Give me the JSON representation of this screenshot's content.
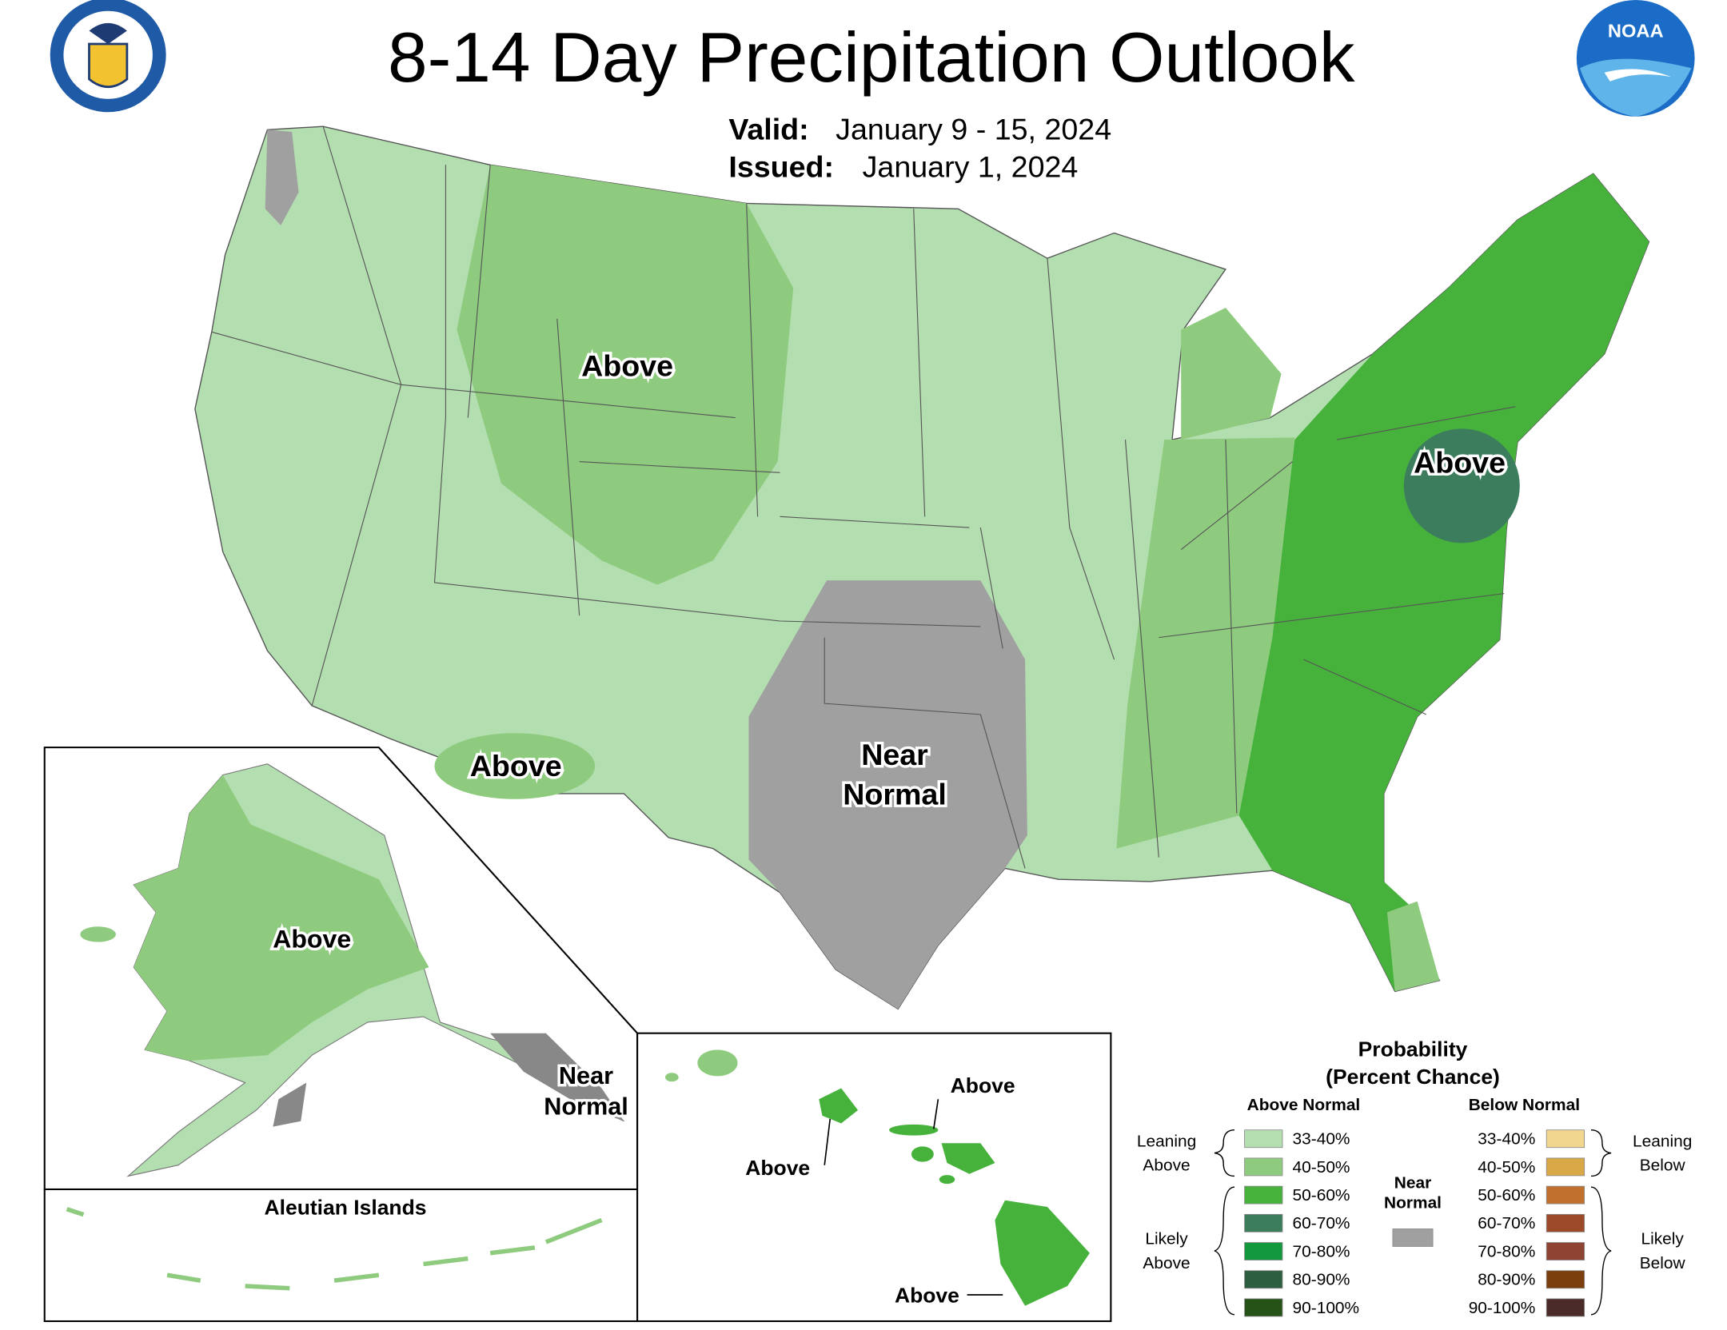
{
  "header": {
    "title": "8-14 Day Precipitation Outlook",
    "valid_label": "Valid:",
    "valid": "January 9 - 15, 2024",
    "issued_label": "Issued:",
    "issued": "January 1, 2024",
    "noaa_logo": "NOAA"
  },
  "map_labels": {
    "conus_rockies": "Above",
    "conus_mid_atlantic": "Above",
    "conus_arizona": "Above",
    "conus_near_normal": [
      "Near",
      "Normal"
    ],
    "alaska_above": "Above",
    "alaska_near_normal": [
      "Near",
      "Normal"
    ],
    "hawaii_kauai_maui": "Above",
    "hawaii_oahu": "Above",
    "hawaii_big_island": "Above"
  },
  "inset_labels": {
    "aleutian": "Aleutian Islands"
  },
  "legend": {
    "title": "Probability",
    "subtitle": "(Percent Chance)",
    "above_heading": "Above Normal",
    "below_heading": "Below Normal",
    "above_items": [
      {
        "label": "33-40%",
        "color": "#b3deb0"
      },
      {
        "label": "40-50%",
        "color": "#8fcb7f"
      },
      {
        "label": "50-60%",
        "color": "#46b23c"
      },
      {
        "label": "60-70%",
        "color": "#3b7d5d"
      },
      {
        "label": "70-80%",
        "color": "#14983e"
      },
      {
        "label": "80-90%",
        "color": "#2d5e40"
      },
      {
        "label": "90-100%",
        "color": "#245217"
      }
    ],
    "below_items": [
      {
        "label": "33-40%",
        "color": "#f0d68e"
      },
      {
        "label": "40-50%",
        "color": "#d9a947"
      },
      {
        "label": "50-60%",
        "color": "#c1702d"
      },
      {
        "label": "60-70%",
        "color": "#9c4a2a"
      },
      {
        "label": "70-80%",
        "color": "#8e4333"
      },
      {
        "label": "80-90%",
        "color": "#7b3f0d"
      },
      {
        "label": "90-100%",
        "color": "#4b2a2a"
      }
    ],
    "near_label": [
      "Near",
      "Normal"
    ],
    "near_color": "#a0a0a0",
    "leaning_above": [
      "Leaning",
      "Above"
    ],
    "likely_above": [
      "Likely",
      "Above"
    ],
    "leaning_below": [
      "Leaning",
      "Below"
    ],
    "likely_below": [
      "Likely",
      "Below"
    ]
  }
}
